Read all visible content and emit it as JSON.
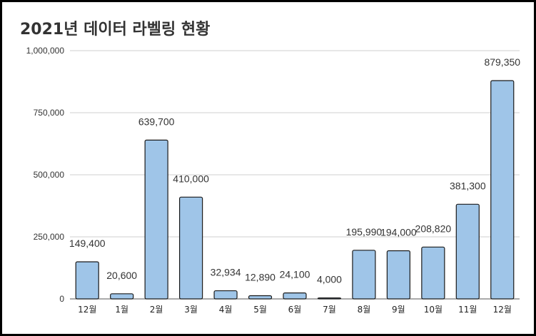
{
  "chart_data": {
    "type": "bar",
    "title": "2021년 데이터 라벨링 현황",
    "xlabel": "",
    "ylabel": "",
    "categories": [
      "12월",
      "1월",
      "2월",
      "3월",
      "4월",
      "5월",
      "6월",
      "7월",
      "8월",
      "9월",
      "10월",
      "11월",
      "12월"
    ],
    "values": [
      149400,
      20600,
      639700,
      410000,
      32934,
      12890,
      24100,
      4000,
      195990,
      194000,
      208820,
      381300,
      879350
    ],
    "value_labels": [
      "149,400",
      "20,600",
      "639,700",
      "410,000",
      "32,934",
      "12,890",
      "24,100",
      "4,000",
      "195,990",
      "194,000",
      "208,820",
      "381,300",
      "879,350"
    ],
    "ylim": [
      0,
      1000000
    ],
    "yticks": [
      0,
      250000,
      500000,
      750000,
      1000000
    ],
    "ytick_labels": [
      "0",
      "250,000",
      "500,000",
      "750,000",
      "1,000,000"
    ],
    "grid": true,
    "bar_color": "#9fc5e8",
    "bar_edge_color": "#1a1a1a"
  }
}
